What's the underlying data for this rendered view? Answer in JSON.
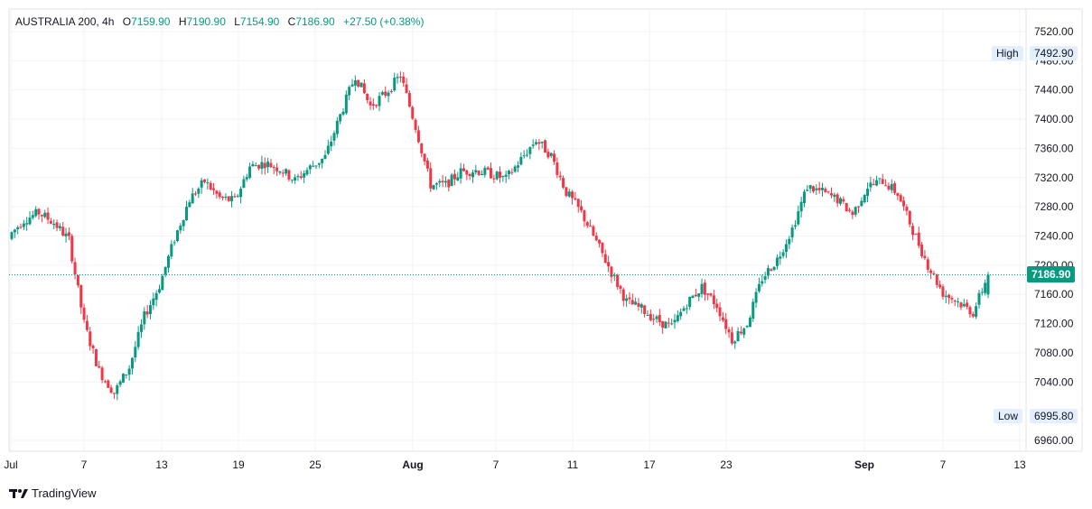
{
  "legend": {
    "symbol": "AUSTRALIA 200, 4h",
    "open_label": "O",
    "open": "7159.90",
    "high_label": "H",
    "high": "7190.90",
    "low_label": "L",
    "low": "7154.90",
    "close_label": "C",
    "close": "7186.90",
    "change": "+27.50 (+0.38%)"
  },
  "markers": {
    "high_label": "High",
    "high_value": "7492.90",
    "low_label": "Low",
    "low_value": "6995.80",
    "last_price": "7186.90"
  },
  "brand": {
    "name": "TradingView",
    "icon": "tradingview-logo-icon"
  },
  "colors": {
    "up": "#089981",
    "down": "#f23645",
    "grid": "#f0f3fa",
    "price_line": "#089981"
  },
  "chart_data": {
    "type": "candlestick",
    "timeframe": "4h",
    "ylim": [
      6960,
      7520
    ],
    "y_ticks": [
      "7520.00",
      "7480.00",
      "7440.00",
      "7400.00",
      "7360.00",
      "7320.00",
      "7280.00",
      "7240.00",
      "7200.00",
      "7160.00",
      "7120.00",
      "7080.00",
      "7040.00",
      "6995.80",
      "6960.00"
    ],
    "x_ticks": [
      "Jul",
      "7",
      "13",
      "19",
      "25",
      "Aug",
      "7",
      "11",
      "17",
      "23",
      "Sep",
      "7",
      "13"
    ],
    "grid": true,
    "daily_close_path": [
      7240,
      7262,
      7272,
      7258,
      7235,
      7120,
      7055,
      7025,
      7060,
      7130,
      7172,
      7236,
      7290,
      7315,
      7292,
      7288,
      7335,
      7340,
      7332,
      7316,
      7334,
      7348,
      7405,
      7460,
      7418,
      7435,
      7460,
      7390,
      7310,
      7310,
      7328,
      7330,
      7325,
      7318,
      7345,
      7372,
      7350,
      7300,
      7272,
      7232,
      7190,
      7150,
      7140,
      7125,
      7115,
      7148,
      7170,
      7145,
      7098,
      7120,
      7182,
      7208,
      7250,
      7308,
      7300,
      7290,
      7270,
      7308,
      7316,
      7298,
      7248,
      7200,
      7162,
      7150,
      7135,
      7186.9
    ],
    "final_candle": {
      "open": 7159.9,
      "high": 7190.9,
      "low": 7154.9,
      "close": 7186.9
    },
    "period_high": 7492.9,
    "period_low": 6995.8
  }
}
